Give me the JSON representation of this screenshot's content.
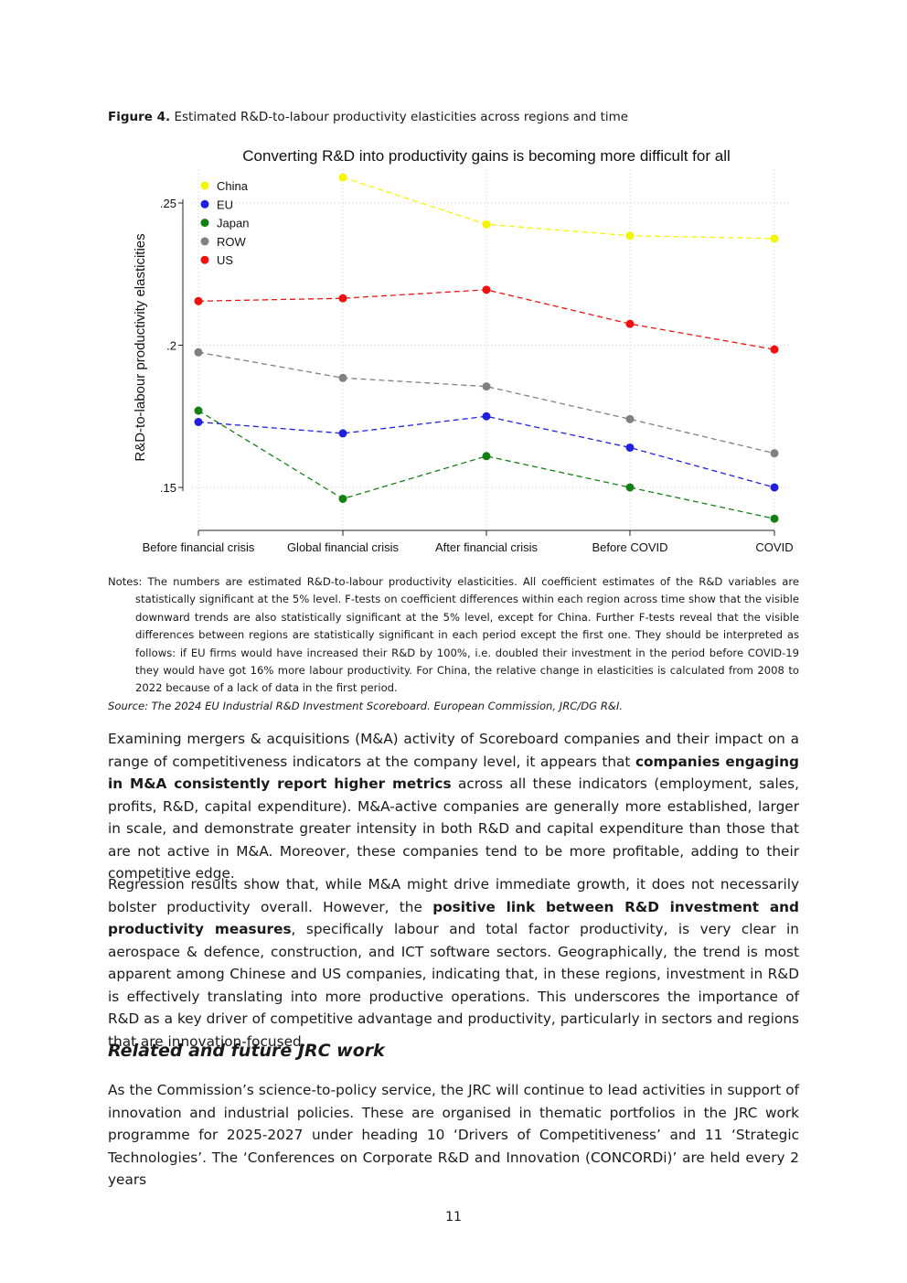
{
  "figure": {
    "label": "Figure 4.",
    "caption": "Estimated R&D-to-labour productivity elasticities across regions and time"
  },
  "chart_data": {
    "type": "line",
    "title": "Converting R&D into productivity gains is becoming more difficult for all",
    "xlabel": "",
    "ylabel": "R&D-to-labour productivity elasticities",
    "categories": [
      "Before financial crisis",
      "Global financial crisis",
      "After financial crisis",
      "Before COVID",
      "COVID"
    ],
    "y_ticks": [
      0.15,
      0.2,
      0.25
    ],
    "y_tick_labels": [
      ".15",
      ".2",
      ".25"
    ],
    "ylim": [
      0.139,
      0.262
    ],
    "grid": true,
    "line_style": "dashed",
    "legend_position": "top-left",
    "series": [
      {
        "name": "China",
        "color": "#f5f500",
        "values": [
          null,
          0.259,
          0.2425,
          0.2385,
          0.2375
        ]
      },
      {
        "name": "EU",
        "color": "#1f1fe0",
        "values": [
          0.173,
          0.169,
          0.175,
          0.164,
          0.15
        ]
      },
      {
        "name": "Japan",
        "color": "#138013",
        "values": [
          0.177,
          0.146,
          0.161,
          0.15,
          0.139
        ]
      },
      {
        "name": "ROW",
        "color": "#808080",
        "values": [
          0.1975,
          0.1885,
          0.1855,
          0.174,
          0.162
        ]
      },
      {
        "name": "US",
        "color": "#f01010",
        "values": [
          0.2155,
          0.2165,
          0.2195,
          0.2075,
          0.1985
        ]
      }
    ]
  },
  "notes": {
    "text": "Notes: The numbers are estimated R&D-to-labour productivity elasticities. All coefficient estimates of the R&D variables are statistically significant at the 5% level. F-tests on coefficient differences within each region across time show that the visible downward trends are also statistically significant at the 5% level, except for China. Further F-tests reveal that the visible differences between regions are statistically significant in each period except the first one. They should be interpreted as follows: if EU firms would have increased their R&D by 100%, i.e. doubled their investment in the period before COVID-19 they would have got 16% more labour productivity. For China, the relative change in elasticities is calculated from 2008 to 2022 because of a lack of data in the first period.",
    "source": "Source: The 2024 EU Industrial R&D Investment Scoreboard. European Commission, JRC/DG R&I."
  },
  "para1": {
    "a": "Examining mergers & acquisitions (M&A) activity of Scoreboard companies and their impact on a range of competitiveness indicators at the company level, it appears that ",
    "bold": "companies engaging in M&A consistently report higher metrics",
    "b": " across all these indicators (employment, sales, profits, R&D, capital expenditure). M&A-active companies are generally more established, larger in scale, and demonstrate greater intensity in both R&D and capital expenditure than those that are not active in M&A. Moreover, these companies tend to be more profitable, adding to their competitive edge."
  },
  "para2": {
    "a": "Regression results show that, while M&A might drive immediate growth, it does not necessarily bolster productivity overall. However, the ",
    "bold": "positive link between R&D investment and productivity measures",
    "b": ", specifically labour and total factor productivity, is very clear in aerospace & defence, construction, and ICT software sectors. Geographically, the trend is most apparent among Chinese and US companies, indicating that, in these regions, investment in R&D is effectively translating into more productive operations. This underscores the importance of R&D as a key driver of competitive advantage and productivity, particularly in sectors and regions that are innovation-focused."
  },
  "heading": "Related and future JRC work",
  "para3": "As the Commission’s science-to-policy service, the JRC will continue to lead activities in support of innovation and industrial policies. These are organised in thematic portfolios in the JRC work programme for 2025-2027 under heading 10 ‘Drivers of Competitiveness’ and 11 ‘Strategic Technologies’. The ‘Conferences on Corporate R&D and Innovation (CONCORDi)’ are held every 2 years",
  "page_number": "11"
}
